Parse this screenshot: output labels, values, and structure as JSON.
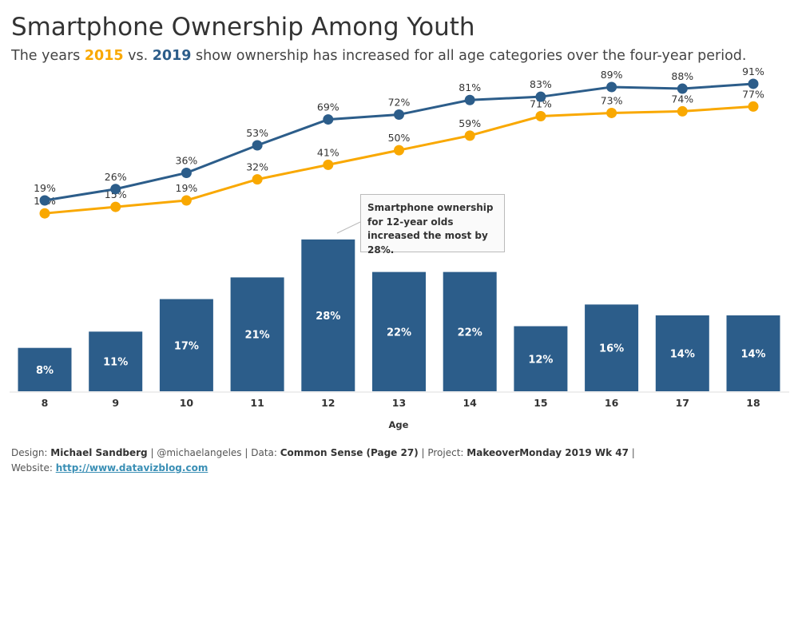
{
  "title": "Smartphone Ownership Among Youth",
  "subtitle": {
    "pre": "The years ",
    "y1": "2015",
    "mid": " vs. ",
    "y2": "2019",
    "post": " show ownership has increased for all age categories over the four-year period."
  },
  "annotation": "Smartphone ownership for 12-year olds increased the most by 28%.",
  "footer": {
    "design_label": "Design: ",
    "design": "Michael Sandberg",
    "handle": " | @michaelangeles | Data: ",
    "data": "Common Sense (Page 27)",
    "project_label": " | Project: ",
    "project": "MakeoverMonday 2019 Wk 47",
    "sep": " |",
    "website_label": "Website: ",
    "website": "http://www.datavizblog.com"
  },
  "colors": {
    "y2015": "#f9a800",
    "y2019": "#2c5d8a",
    "bar": "#2c5d8a"
  },
  "chart_data": {
    "type": "line+bar",
    "categories": [
      "8",
      "9",
      "10",
      "11",
      "12",
      "13",
      "14",
      "15",
      "16",
      "17",
      "18"
    ],
    "xlabel": "Age",
    "series": [
      {
        "name": "2019",
        "type": "line",
        "values": [
          19,
          26,
          36,
          53,
          69,
          72,
          81,
          83,
          89,
          88,
          91
        ]
      },
      {
        "name": "2015",
        "type": "line",
        "values": [
          11,
          15,
          19,
          32,
          41,
          50,
          59,
          71,
          73,
          74,
          77
        ]
      },
      {
        "type": "bar",
        "values": [
          8,
          11,
          17,
          21,
          28,
          22,
          22,
          12,
          16,
          14,
          14
        ]
      }
    ],
    "unit": "%"
  }
}
